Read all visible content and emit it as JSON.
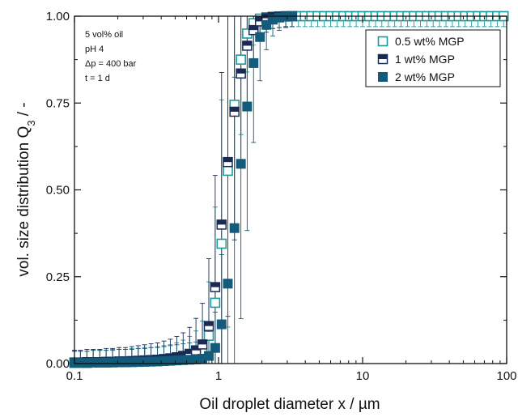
{
  "chart_data": {
    "type": "scatter",
    "x_scale": "log",
    "xlim": [
      0.1,
      100
    ],
    "ylim": [
      0,
      1
    ],
    "xlabel": "Oil droplet diameter x / µm",
    "ylabel_main": "vol. size distribution Q",
    "ylabel_sub": "3",
    "ylabel_tail": " / -",
    "x_ticks": [
      {
        "value": 0.1,
        "label": "0.1"
      },
      {
        "value": 1,
        "label": "1"
      },
      {
        "value": 10,
        "label": "10"
      },
      {
        "value": 100,
        "label": "100"
      }
    ],
    "y_ticks": [
      {
        "value": 0,
        "label": "0.00"
      },
      {
        "value": 0.25,
        "label": "0.25"
      },
      {
        "value": 0.5,
        "label": "0.50"
      },
      {
        "value": 0.75,
        "label": "0.75"
      },
      {
        "value": 1,
        "label": "1.00"
      }
    ],
    "annotations": [
      "5 vol% oil",
      "pH 4",
      "Δp = 400 bar",
      "t = 1 d"
    ],
    "legend_position": "top-right",
    "series": [
      {
        "name": "0.5 wt% MGP",
        "marker": "open-square",
        "color": "#1b9a9a",
        "x": [
          0.1,
          0.11,
          0.122,
          0.135,
          0.15,
          0.166,
          0.184,
          0.204,
          0.226,
          0.25,
          0.277,
          0.307,
          0.34,
          0.377,
          0.418,
          0.463,
          0.513,
          0.568,
          0.63,
          0.697,
          0.773,
          0.856,
          0.948,
          1.05,
          1.16,
          1.29,
          1.43,
          1.58,
          1.75,
          1.94,
          2.15,
          2.38,
          2.64,
          2.93,
          3.24,
          3.59,
          3.98,
          4.41,
          4.88,
          5.41,
          6,
          6.64,
          7.36,
          8.15,
          9.03,
          10,
          11.1,
          12.3,
          13.6,
          15.1,
          16.7,
          18.5,
          20.5,
          22.7,
          25.2,
          27.9,
          30.9,
          34.2,
          37.9,
          42,
          46.5,
          51.5,
          57.1,
          63.2,
          70,
          77.6,
          86,
          95.2
        ],
        "y": [
          0.002,
          0.002,
          0.002,
          0.003,
          0.003,
          0.003,
          0.004,
          0.004,
          0.004,
          0.005,
          0.005,
          0.006,
          0.006,
          0.007,
          0.008,
          0.009,
          0.011,
          0.014,
          0.018,
          0.024,
          0.035,
          0.08,
          0.175,
          0.345,
          0.555,
          0.745,
          0.875,
          0.95,
          0.98,
          0.993,
          0.997,
          0.998,
          0.999,
          0.999,
          1,
          1,
          1,
          1,
          1,
          1,
          1,
          1,
          1,
          1,
          1,
          1,
          1,
          1,
          1,
          1,
          1,
          1,
          1,
          1,
          1,
          1,
          1,
          1,
          1,
          1,
          1,
          1,
          1,
          1,
          1,
          1,
          1,
          1
        ]
      },
      {
        "name": "1 wt% MGP",
        "marker": "half-filled-square",
        "color": "#1a2a55",
        "x": [
          0.1,
          0.11,
          0.122,
          0.135,
          0.15,
          0.166,
          0.184,
          0.204,
          0.226,
          0.25,
          0.277,
          0.307,
          0.34,
          0.377,
          0.418,
          0.463,
          0.513,
          0.568,
          0.63,
          0.697,
          0.773,
          0.856,
          0.948,
          1.05,
          1.16,
          1.29,
          1.43,
          1.58,
          1.75,
          1.94,
          2.15,
          2.38,
          2.64,
          2.93,
          3.24
        ],
        "y": [
          0.003,
          0.003,
          0.004,
          0.004,
          0.004,
          0.005,
          0.005,
          0.006,
          0.006,
          0.007,
          0.008,
          0.009,
          0.01,
          0.011,
          0.013,
          0.015,
          0.018,
          0.022,
          0.028,
          0.038,
          0.055,
          0.108,
          0.22,
          0.4,
          0.58,
          0.725,
          0.835,
          0.915,
          0.96,
          0.985,
          0.994,
          0.998,
          0.999,
          1,
          1
        ]
      },
      {
        "name": "2 wt% MGP",
        "marker": "filled-square",
        "color": "#145a7a",
        "x": [
          0.1,
          0.11,
          0.122,
          0.135,
          0.15,
          0.166,
          0.184,
          0.204,
          0.226,
          0.25,
          0.277,
          0.307,
          0.34,
          0.377,
          0.418,
          0.463,
          0.513,
          0.568,
          0.63,
          0.697,
          0.773,
          0.856,
          0.948,
          1.05,
          1.16,
          1.29,
          1.43,
          1.58,
          1.75,
          1.94,
          2.15,
          2.38,
          2.64,
          2.93,
          3.24
        ],
        "y": [
          0.002,
          0.002,
          0.002,
          0.003,
          0.003,
          0.003,
          0.003,
          0.004,
          0.004,
          0.004,
          0.005,
          0.005,
          0.006,
          0.006,
          0.007,
          0.008,
          0.009,
          0.01,
          0.011,
          0.012,
          0.014,
          0.022,
          0.045,
          0.113,
          0.23,
          0.39,
          0.575,
          0.74,
          0.865,
          0.94,
          0.975,
          0.99,
          0.996,
          0.999,
          1
        ]
      }
    ]
  }
}
